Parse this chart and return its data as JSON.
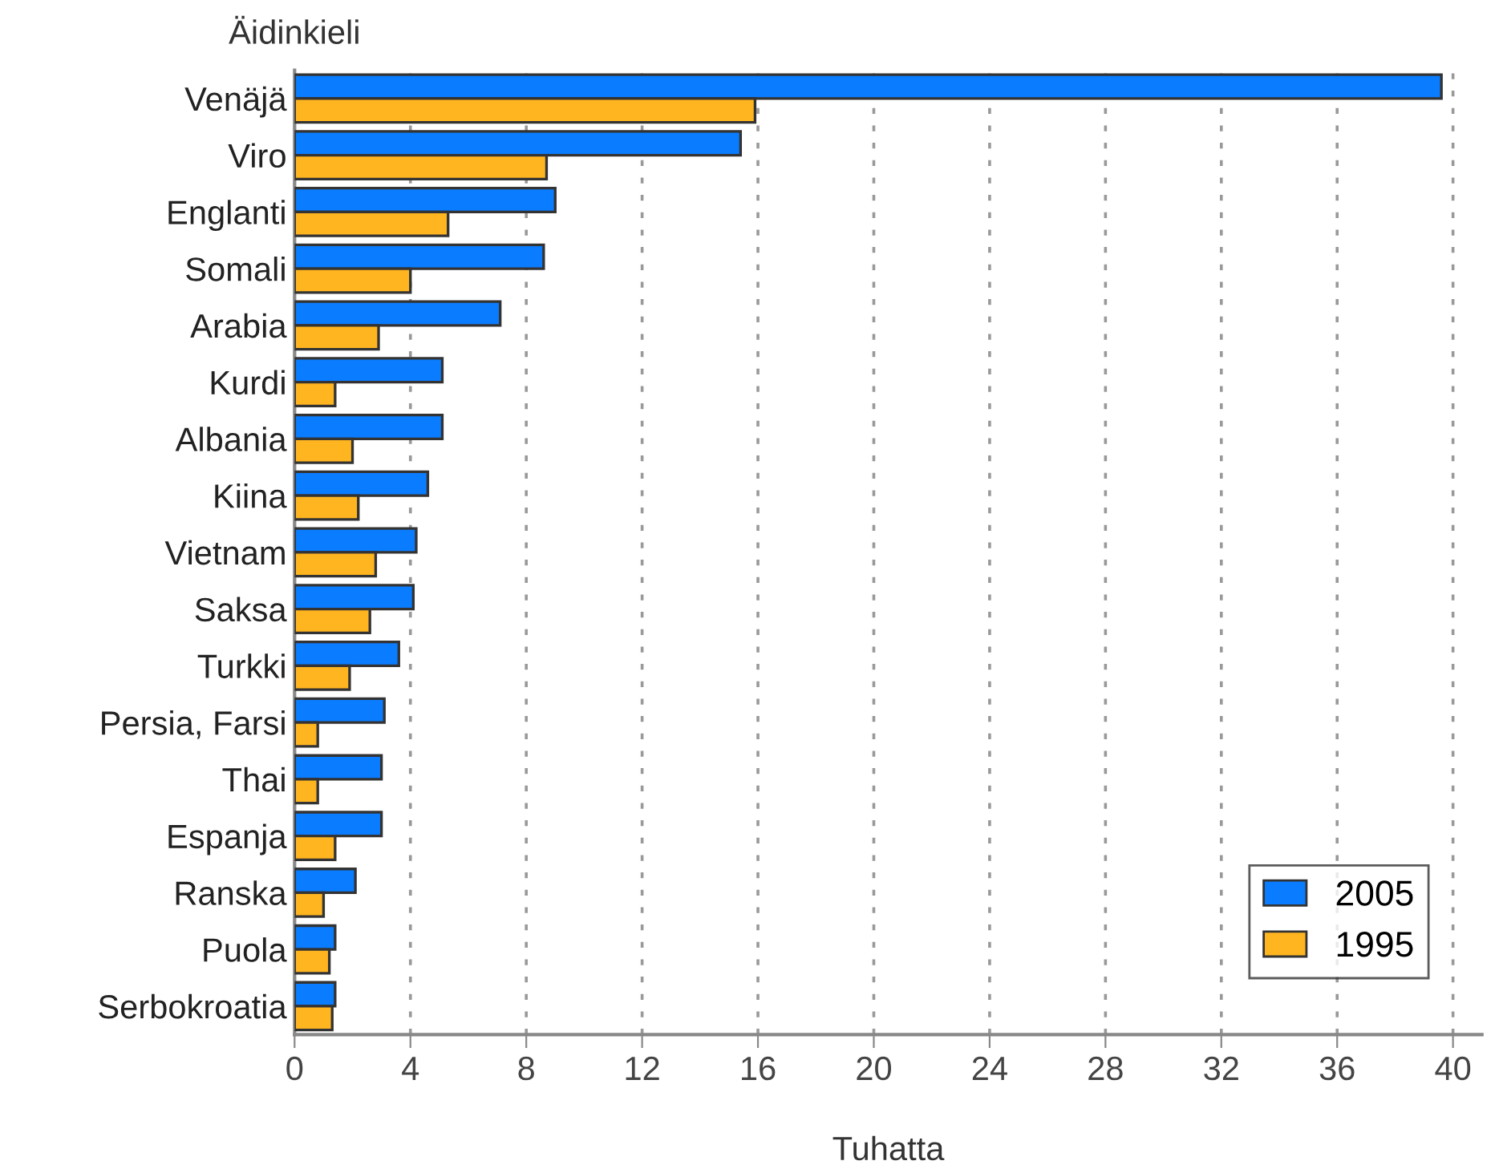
{
  "chart_data": {
    "type": "bar",
    "orientation": "horizontal",
    "title": "Äidinkieli",
    "xlabel": "Tuhatta",
    "categories": [
      "Venäjä",
      "Viro",
      "Englanti",
      "Somali",
      "Arabia",
      "Kurdi",
      "Albania",
      "Kiina",
      "Vietnam",
      "Saksa",
      "Turkki",
      "Persia, Farsi",
      "Thai",
      "Espanja",
      "Ranska",
      "Puola",
      "Serbokroatia"
    ],
    "series": [
      {
        "name": "2005",
        "color": "#0a7cff",
        "values": [
          39.6,
          15.4,
          9.0,
          8.6,
          7.1,
          5.1,
          5.1,
          4.6,
          4.2,
          4.1,
          3.6,
          3.1,
          3.0,
          3.0,
          2.1,
          1.4,
          1.4
        ]
      },
      {
        "name": "1995",
        "color": "#ffb520",
        "values": [
          15.9,
          8.7,
          5.3,
          4.0,
          2.9,
          1.4,
          2.0,
          2.2,
          2.8,
          2.6,
          1.9,
          0.8,
          0.8,
          1.4,
          1.0,
          1.2,
          1.3
        ]
      }
    ],
    "xlim": [
      0,
      41
    ],
    "xticks": [
      0,
      4,
      8,
      12,
      16,
      20,
      24,
      28,
      32,
      36,
      40
    ],
    "grid": "x",
    "legend": "bottom right"
  }
}
